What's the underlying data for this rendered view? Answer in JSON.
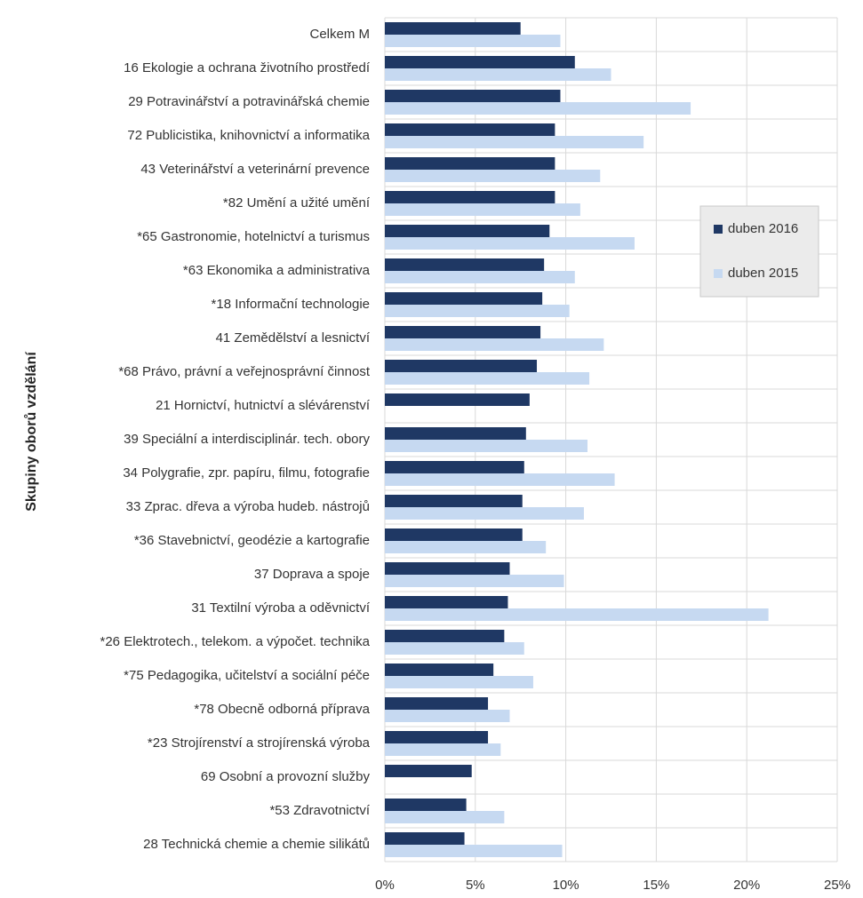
{
  "chart_data": {
    "type": "bar",
    "orientation": "horizontal",
    "y_label": "Skupiny oborů vzdělání",
    "categories": [
      "Celkem M",
      "16 Ekologie a ochrana životního prostředí",
      "29 Potravinářství a potravinářská chemie",
      "72 Publicistika, knihovnictví a informatika",
      "43 Veterinářství a veterinární prevence",
      "*82 Umění a užité umění",
      "*65 Gastronomie, hotelnictví a turismus",
      "*63 Ekonomika a administrativa",
      "*18 Informační technologie",
      "41 Zemědělství a lesnictví",
      "*68 Právo, právní a veřejnosprávní činnost",
      "21 Hornictví, hutnictví a slévárenství",
      "39 Speciální a interdisciplinár. tech. obory",
      "34 Polygrafie, zpr. papíru, filmu, fotografie",
      "33 Zprac. dřeva a výroba hudeb. nástrojů",
      "*36 Stavebnictví, geodézie a kartografie",
      "37 Doprava a spoje",
      "31 Textilní výroba a oděvnictví",
      "*26 Elektrotech., telekom. a výpočet. technika",
      "*75 Pedagogika, učitelství a sociální péče",
      "*78 Obecně odborná příprava",
      "*23 Strojírenství a strojírenská výroba",
      "69 Osobní a provozní služby",
      "*53 Zdravotnictví",
      "28 Technická chemie a chemie silikátů"
    ],
    "series": [
      {
        "name": "duben 2016",
        "color": "#1f3864",
        "values": [
          7.5,
          10.5,
          9.7,
          9.4,
          9.4,
          9.4,
          9.1,
          8.8,
          8.7,
          8.6,
          8.4,
          8.0,
          7.8,
          7.7,
          7.6,
          7.6,
          6.9,
          6.8,
          6.6,
          6.0,
          5.7,
          5.7,
          4.8,
          4.5,
          4.4
        ]
      },
      {
        "name": "duben 2015",
        "color": "#c6d9f1",
        "values": [
          9.7,
          12.5,
          16.9,
          14.3,
          11.9,
          10.8,
          13.8,
          10.5,
          10.2,
          12.1,
          11.3,
          null,
          11.2,
          12.7,
          11.0,
          8.9,
          9.9,
          21.2,
          7.7,
          8.2,
          6.9,
          6.4,
          null,
          6.6,
          9.8
        ]
      }
    ],
    "xlim": [
      0,
      25
    ],
    "xticks": [
      {
        "value": 0,
        "label": "0%"
      },
      {
        "value": 5,
        "label": "5%"
      },
      {
        "value": 10,
        "label": "10%"
      },
      {
        "value": 15,
        "label": "15%"
      },
      {
        "value": 20,
        "label": "20%"
      },
      {
        "value": 25,
        "label": "25%"
      }
    ],
    "grid": true,
    "legend": "right"
  }
}
